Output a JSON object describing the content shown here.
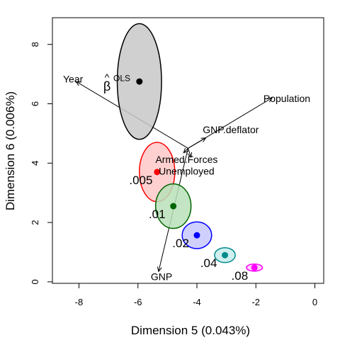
{
  "chart_data": {
    "type": "scatter",
    "title": "",
    "xlabel": "Dimension 5 (0.043%)",
    "ylabel": "Dimension 6 (0.006%)",
    "xlim": [
      -8.9,
      0.3
    ],
    "ylim": [
      -0.05,
      8.9
    ],
    "x_ticks": [
      -8,
      -6,
      -4,
      -2,
      0
    ],
    "y_ticks": [
      0,
      2,
      4,
      6,
      8
    ],
    "x_tick_labels": [
      "-8",
      "-6",
      "-4",
      "-2",
      "0"
    ],
    "y_tick_labels": [
      "0",
      "2",
      "4",
      "6",
      "8"
    ],
    "grid": false,
    "legend": "none",
    "ellipses": [
      {
        "label": "β̂ OLS",
        "label_main": "β",
        "label_hat": "^",
        "label_sup": "OLS",
        "x": -5.95,
        "y": 6.75,
        "rx": 0.75,
        "ry": 1.95,
        "fill": "#c8c8c8",
        "stroke": "#000000",
        "dot": "#000000"
      },
      {
        "label": ".005",
        "x": -5.35,
        "y": 3.7,
        "rx": 0.6,
        "ry": 1.0,
        "fill": "#ffc8c8",
        "stroke": "#ff0000",
        "dot": "#ff0000"
      },
      {
        "label": ".01",
        "x": -4.8,
        "y": 2.55,
        "rx": 0.6,
        "ry": 0.75,
        "fill": "#b8e0b8",
        "stroke": "#006400",
        "dot": "#006400"
      },
      {
        "label": ".02",
        "x": -4.0,
        "y": 1.57,
        "rx": 0.5,
        "ry": 0.45,
        "fill": "#c8c8ff",
        "stroke": "#0000ff",
        "dot": "#0000ff"
      },
      {
        "label": ".04",
        "x": -3.05,
        "y": 0.9,
        "rx": 0.35,
        "ry": 0.25,
        "fill": "#c8ecec",
        "stroke": "#008b8b",
        "dot": "#008b8b"
      },
      {
        "label": ".08",
        "x": -2.05,
        "y": 0.48,
        "rx": 0.27,
        "ry": 0.12,
        "fill": "#ffc8ff",
        "stroke": "#ff00ff",
        "dot": "#ff00ff"
      }
    ],
    "vector_origin": {
      "x": -4.3,
      "y": 4.5
    },
    "vectors": [
      {
        "name": "Year",
        "x": -8.1,
        "y": 6.75
      },
      {
        "name": "Population",
        "x": -1.45,
        "y": 6.2
      },
      {
        "name": "GNP.deflator",
        "x": -3.7,
        "y": 4.85
      },
      {
        "name": "Armed.Forces",
        "x": -4.45,
        "y": 4.35
      },
      {
        "name": "Unemployed",
        "x": -4.2,
        "y": 4.2
      },
      {
        "name": "GNP",
        "x": -5.3,
        "y": 0.35
      }
    ],
    "vector_labels": [
      {
        "text": "Year",
        "x": -8.2,
        "y": 6.8
      },
      {
        "text": "Population",
        "x": -0.95,
        "y": 6.15
      },
      {
        "text": "GNP.deflator",
        "x": -2.85,
        "y": 5.1
      },
      {
        "text": "Armed.Forces",
        "x": -4.35,
        "y": 4.1
      },
      {
        "text": "Unemployed",
        "x": -4.35,
        "y": 3.7
      },
      {
        "text": "GNP",
        "x": -5.2,
        "y": 0.15
      }
    ],
    "colors": {
      "ols": "#c8c8c8",
      "k005": "#ff0000",
      "k01": "#006400",
      "k02": "#0000ff",
      "k04": "#008b8b",
      "k08": "#ff00ff"
    }
  }
}
